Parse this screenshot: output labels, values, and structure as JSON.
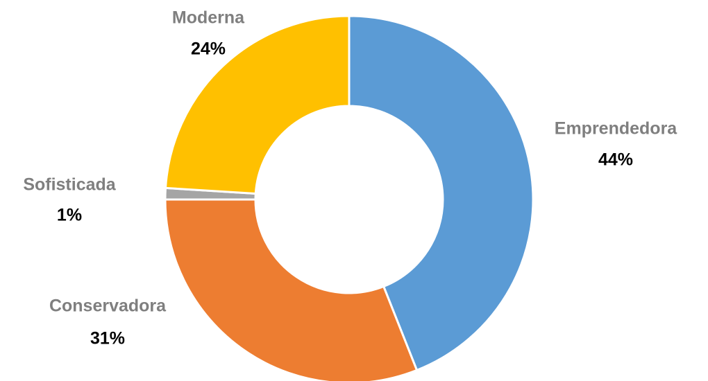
{
  "chart_data": {
    "type": "donut",
    "categories": [
      "Emprendedora",
      "Conservadora",
      "Sofisticada",
      "Moderna"
    ],
    "values": [
      44,
      31,
      1,
      24
    ],
    "value_labels": [
      "44%",
      "31%",
      "1%",
      "24%"
    ],
    "colors": [
      "#5b9bd5",
      "#ed7d31",
      "#a5a5a5",
      "#ffc000"
    ]
  }
}
